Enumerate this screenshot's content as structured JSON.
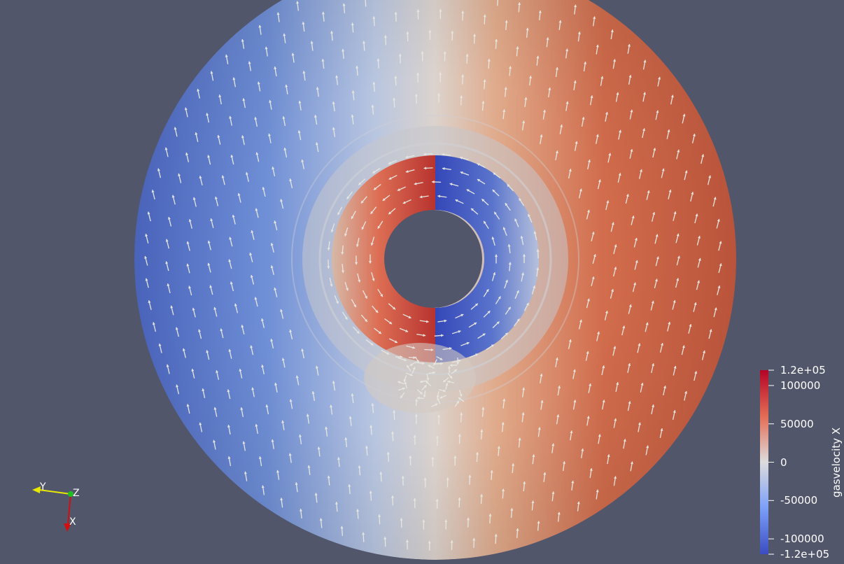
{
  "scene": {
    "colorbar": {
      "title": "gasvelocity X",
      "range": [
        -120000,
        120000
      ],
      "colors": {
        "max": "#b40426",
        "mid": "#dddcdc",
        "min": "#3b4cc0"
      },
      "ticks": [
        {
          "value": 120000,
          "label": "1.2e+05"
        },
        {
          "value": 100000,
          "label": "100000"
        },
        {
          "value": 50000,
          "label": "50000"
        },
        {
          "value": 0,
          "label": "0"
        },
        {
          "value": -50000,
          "label": "-50000"
        },
        {
          "value": -100000,
          "label": "-100000"
        },
        {
          "value": -120000,
          "label": "-1.2e+05"
        }
      ]
    },
    "orientation_axes": {
      "labels": {
        "y": "Y",
        "z": "Z",
        "x": "X"
      },
      "colors": {
        "y": "#e8e800",
        "z": "#20c020",
        "x": "#d01010"
      }
    },
    "glyph_color": "#e6e6e0",
    "background_color": "#52566b"
  }
}
